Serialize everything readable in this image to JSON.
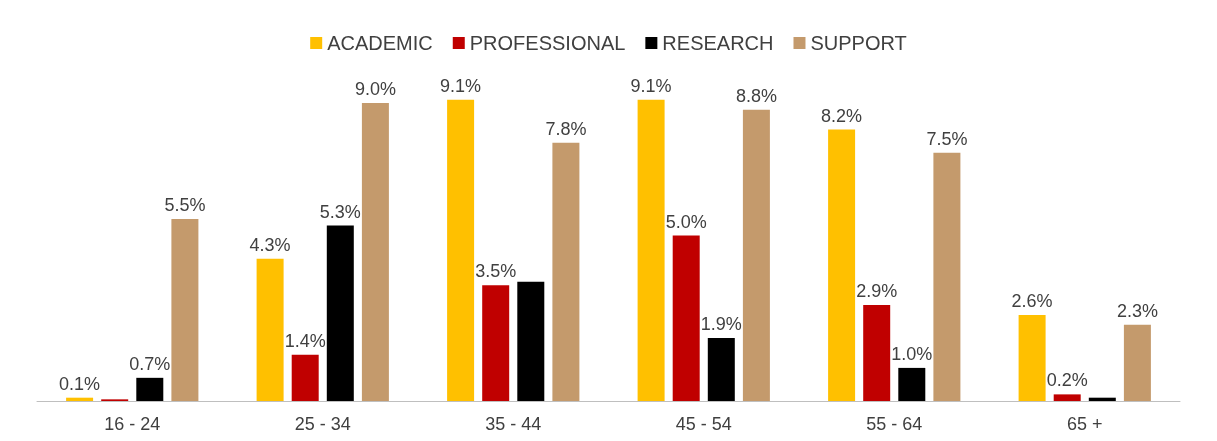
{
  "chart_data": {
    "type": "bar",
    "categories": [
      "16 - 24",
      "25 - 34",
      "35 - 44",
      "45 - 54",
      "55 - 64",
      "65 +"
    ],
    "series": [
      {
        "name": "ACADEMIC",
        "color": "#ffc000",
        "values": [
          0.1,
          4.3,
          9.1,
          9.1,
          8.2,
          2.6
        ],
        "value_labels": [
          "0.1%",
          "4.3%",
          "9.1%",
          "9.1%",
          "8.2%",
          "2.6%"
        ]
      },
      {
        "name": "PROFESSIONAL",
        "color": "#c00000",
        "values": [
          0.05,
          1.4,
          3.5,
          5.0,
          2.9,
          0.2
        ],
        "value_labels": [
          null,
          "1.4%",
          "3.5%",
          "5.0%",
          "2.9%",
          "0.2%"
        ]
      },
      {
        "name": "RESEARCH",
        "color": "#000000",
        "values": [
          0.7,
          5.3,
          3.6,
          1.9,
          1.0,
          0.1
        ],
        "value_labels": [
          "0.7%",
          "5.3%",
          null,
          "1.9%",
          "1.0%",
          null
        ]
      },
      {
        "name": "SUPPORT",
        "color": "#c49a6c",
        "values": [
          5.5,
          9.0,
          7.8,
          8.8,
          7.5,
          2.3
        ],
        "value_labels": [
          "5.5%",
          "9.0%",
          "7.8%",
          "8.8%",
          "7.5%",
          "2.3%"
        ]
      }
    ],
    "legend": "top",
    "grid": false
  }
}
